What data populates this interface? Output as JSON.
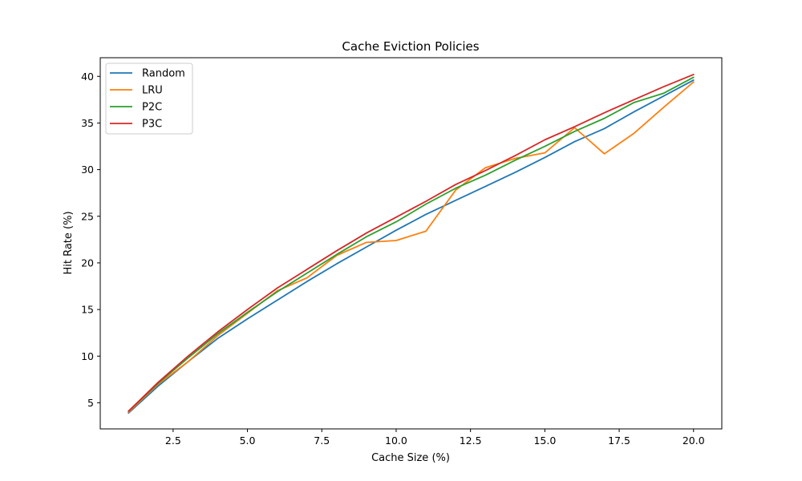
{
  "chart_data": {
    "type": "line",
    "title": "Cache Eviction Policies",
    "xlabel": "Cache Size (%)",
    "ylabel": "Hit Rate (%)",
    "xlim": [
      0.05,
      20.95
    ],
    "ylim": [
      2.2,
      42.0
    ],
    "xticks": [
      2.5,
      5.0,
      7.5,
      10.0,
      12.5,
      15.0,
      17.5,
      20.0
    ],
    "xtick_labels": [
      "2.5",
      "5.0",
      "7.5",
      "10.0",
      "12.5",
      "15.0",
      "17.5",
      "20.0"
    ],
    "yticks": [
      5,
      10,
      15,
      20,
      25,
      30,
      35,
      40
    ],
    "ytick_labels": [
      "5",
      "10",
      "15",
      "20",
      "25",
      "30",
      "35",
      "40"
    ],
    "grid": false,
    "legend_position": "top-left",
    "x": [
      1,
      2,
      3,
      4,
      5,
      6,
      7,
      8,
      9,
      10,
      11,
      12,
      13,
      14,
      15,
      16,
      17,
      18,
      19,
      20
    ],
    "series": [
      {
        "name": "Random",
        "color": "#1f77b4",
        "values": [
          3.9,
          6.8,
          9.4,
          11.9,
          14.0,
          16.0,
          18.0,
          19.9,
          21.7,
          23.5,
          25.2,
          26.7,
          28.2,
          29.7,
          31.3,
          33.0,
          34.4,
          36.2,
          37.9,
          39.6
        ]
      },
      {
        "name": "LRU",
        "color": "#ff7f0e",
        "values": [
          4.0,
          7.0,
          9.4,
          12.2,
          14.6,
          17.0,
          18.4,
          20.8,
          22.2,
          22.4,
          23.4,
          27.8,
          30.2,
          31.2,
          31.8,
          34.5,
          31.7,
          33.9,
          36.7,
          39.4
        ]
      },
      {
        "name": "P2C",
        "color": "#2ca02c",
        "values": [
          4.1,
          7.1,
          9.8,
          12.4,
          14.7,
          16.9,
          18.9,
          20.9,
          22.8,
          24.4,
          26.3,
          28.0,
          29.4,
          31.0,
          32.5,
          34.1,
          35.5,
          37.2,
          38.2,
          39.9
        ]
      },
      {
        "name": "P3C",
        "color": "#d62728",
        "values": [
          4.1,
          7.2,
          10.0,
          12.6,
          15.0,
          17.3,
          19.3,
          21.3,
          23.2,
          24.9,
          26.6,
          28.4,
          29.9,
          31.5,
          33.2,
          34.6,
          36.1,
          37.5,
          38.9,
          40.2
        ]
      }
    ]
  }
}
